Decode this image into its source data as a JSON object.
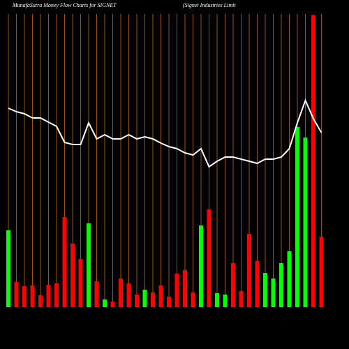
{
  "chart_data": {
    "type": "bar",
    "title": "MunafaSutra  Money Flow  Charts for SIGNET",
    "subtitle": "(Signet Industries Limit",
    "categories": [
      null,
      null,
      null,
      null,
      null,
      null,
      null,
      null,
      null,
      null,
      null,
      null,
      null,
      null,
      null,
      null,
      null,
      null,
      null,
      null,
      null,
      null,
      null,
      null,
      null,
      null,
      null,
      null,
      null,
      null,
      null,
      null,
      null,
      null,
      null,
      null,
      null,
      null,
      null,
      null
    ],
    "values": [
      110,
      36,
      30,
      31,
      17,
      32,
      34,
      129,
      91,
      69,
      120,
      37,
      11,
      8,
      41,
      34,
      18,
      25,
      21,
      31,
      15,
      48,
      53,
      21,
      117,
      140,
      20,
      18,
      63,
      23,
      105,
      66,
      49,
      41,
      63,
      80,
      258,
      243,
      418,
      101
    ],
    "colors": [
      "#00ff00",
      "#ff0000",
      "#ff0000",
      "#ff0000",
      "#ff0000",
      "#ff0000",
      "#ff0000",
      "#ff0000",
      "#ff0000",
      "#ff0000",
      "#00ff00",
      "#ff0000",
      "#00ff00",
      "#ff0000",
      "#ff0000",
      "#ff0000",
      "#ff0000",
      "#00ff00",
      "#ff0000",
      "#ff0000",
      "#ff0000",
      "#ff0000",
      "#ff0000",
      "#ff0000",
      "#00ff00",
      "#ff0000",
      "#00ff00",
      "#00ff00",
      "#ff0000",
      "#ff0000",
      "#ff0000",
      "#ff0000",
      "#00ff00",
      "#00ff00",
      "#00ff00",
      "#00ff00",
      "#00ff00",
      "#00ff00",
      "#ff0000",
      "#ff0000"
    ],
    "line_values": [
      285,
      280,
      277,
      271,
      271,
      265,
      259,
      236,
      233,
      233,
      264,
      241,
      247,
      241,
      241,
      247,
      241,
      244,
      241,
      235,
      230,
      227,
      221,
      218,
      227,
      201,
      209,
      215,
      215,
      212,
      209,
      206,
      212,
      212,
      215,
      227,
      264,
      296,
      270,
      250
    ],
    "line_color": "#ffffff",
    "grid_color": "#a0520a",
    "ylim": [
      0,
      440
    ]
  }
}
